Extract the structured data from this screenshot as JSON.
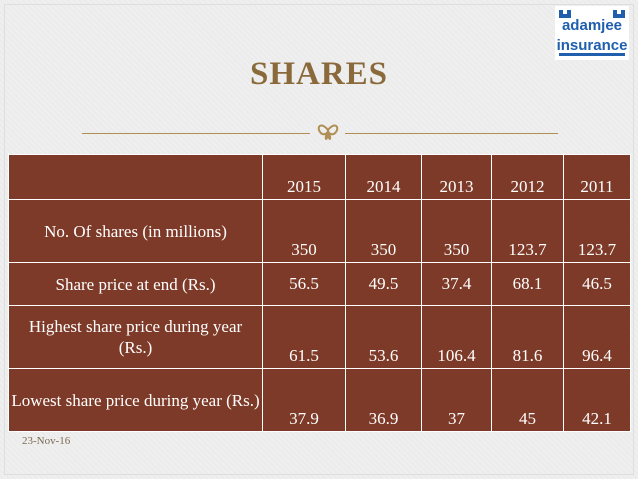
{
  "slide": {
    "title": "SHARES",
    "date": "23-Nov-16",
    "logo": {
      "line1": "adamjee",
      "line2": "insurance",
      "color": "#1f5fae"
    }
  },
  "table": {
    "header": [
      "",
      "2015",
      "2014",
      "2013",
      "2012",
      "2011"
    ],
    "rows": [
      {
        "label": "No. Of shares (in millions)",
        "values": [
          "350",
          "350",
          "350",
          "123.7",
          "123.7"
        ]
      },
      {
        "label": "Share price at end (Rs.)",
        "values": [
          "56.5",
          "49.5",
          "37.4",
          "68.1",
          "46.5"
        ]
      },
      {
        "label": "Highest share price during year (Rs.)",
        "values": [
          "61.5",
          "53.6",
          "106.4",
          "81.6",
          "96.4"
        ]
      },
      {
        "label": "Lowest share price during year (Rs.)",
        "values": [
          "37.9",
          "36.9",
          "37",
          "45",
          "42.1"
        ]
      }
    ]
  },
  "colors": {
    "cell_bg": "#7e3a28",
    "title": "#8a6a3b",
    "accent": "#b08f54"
  }
}
